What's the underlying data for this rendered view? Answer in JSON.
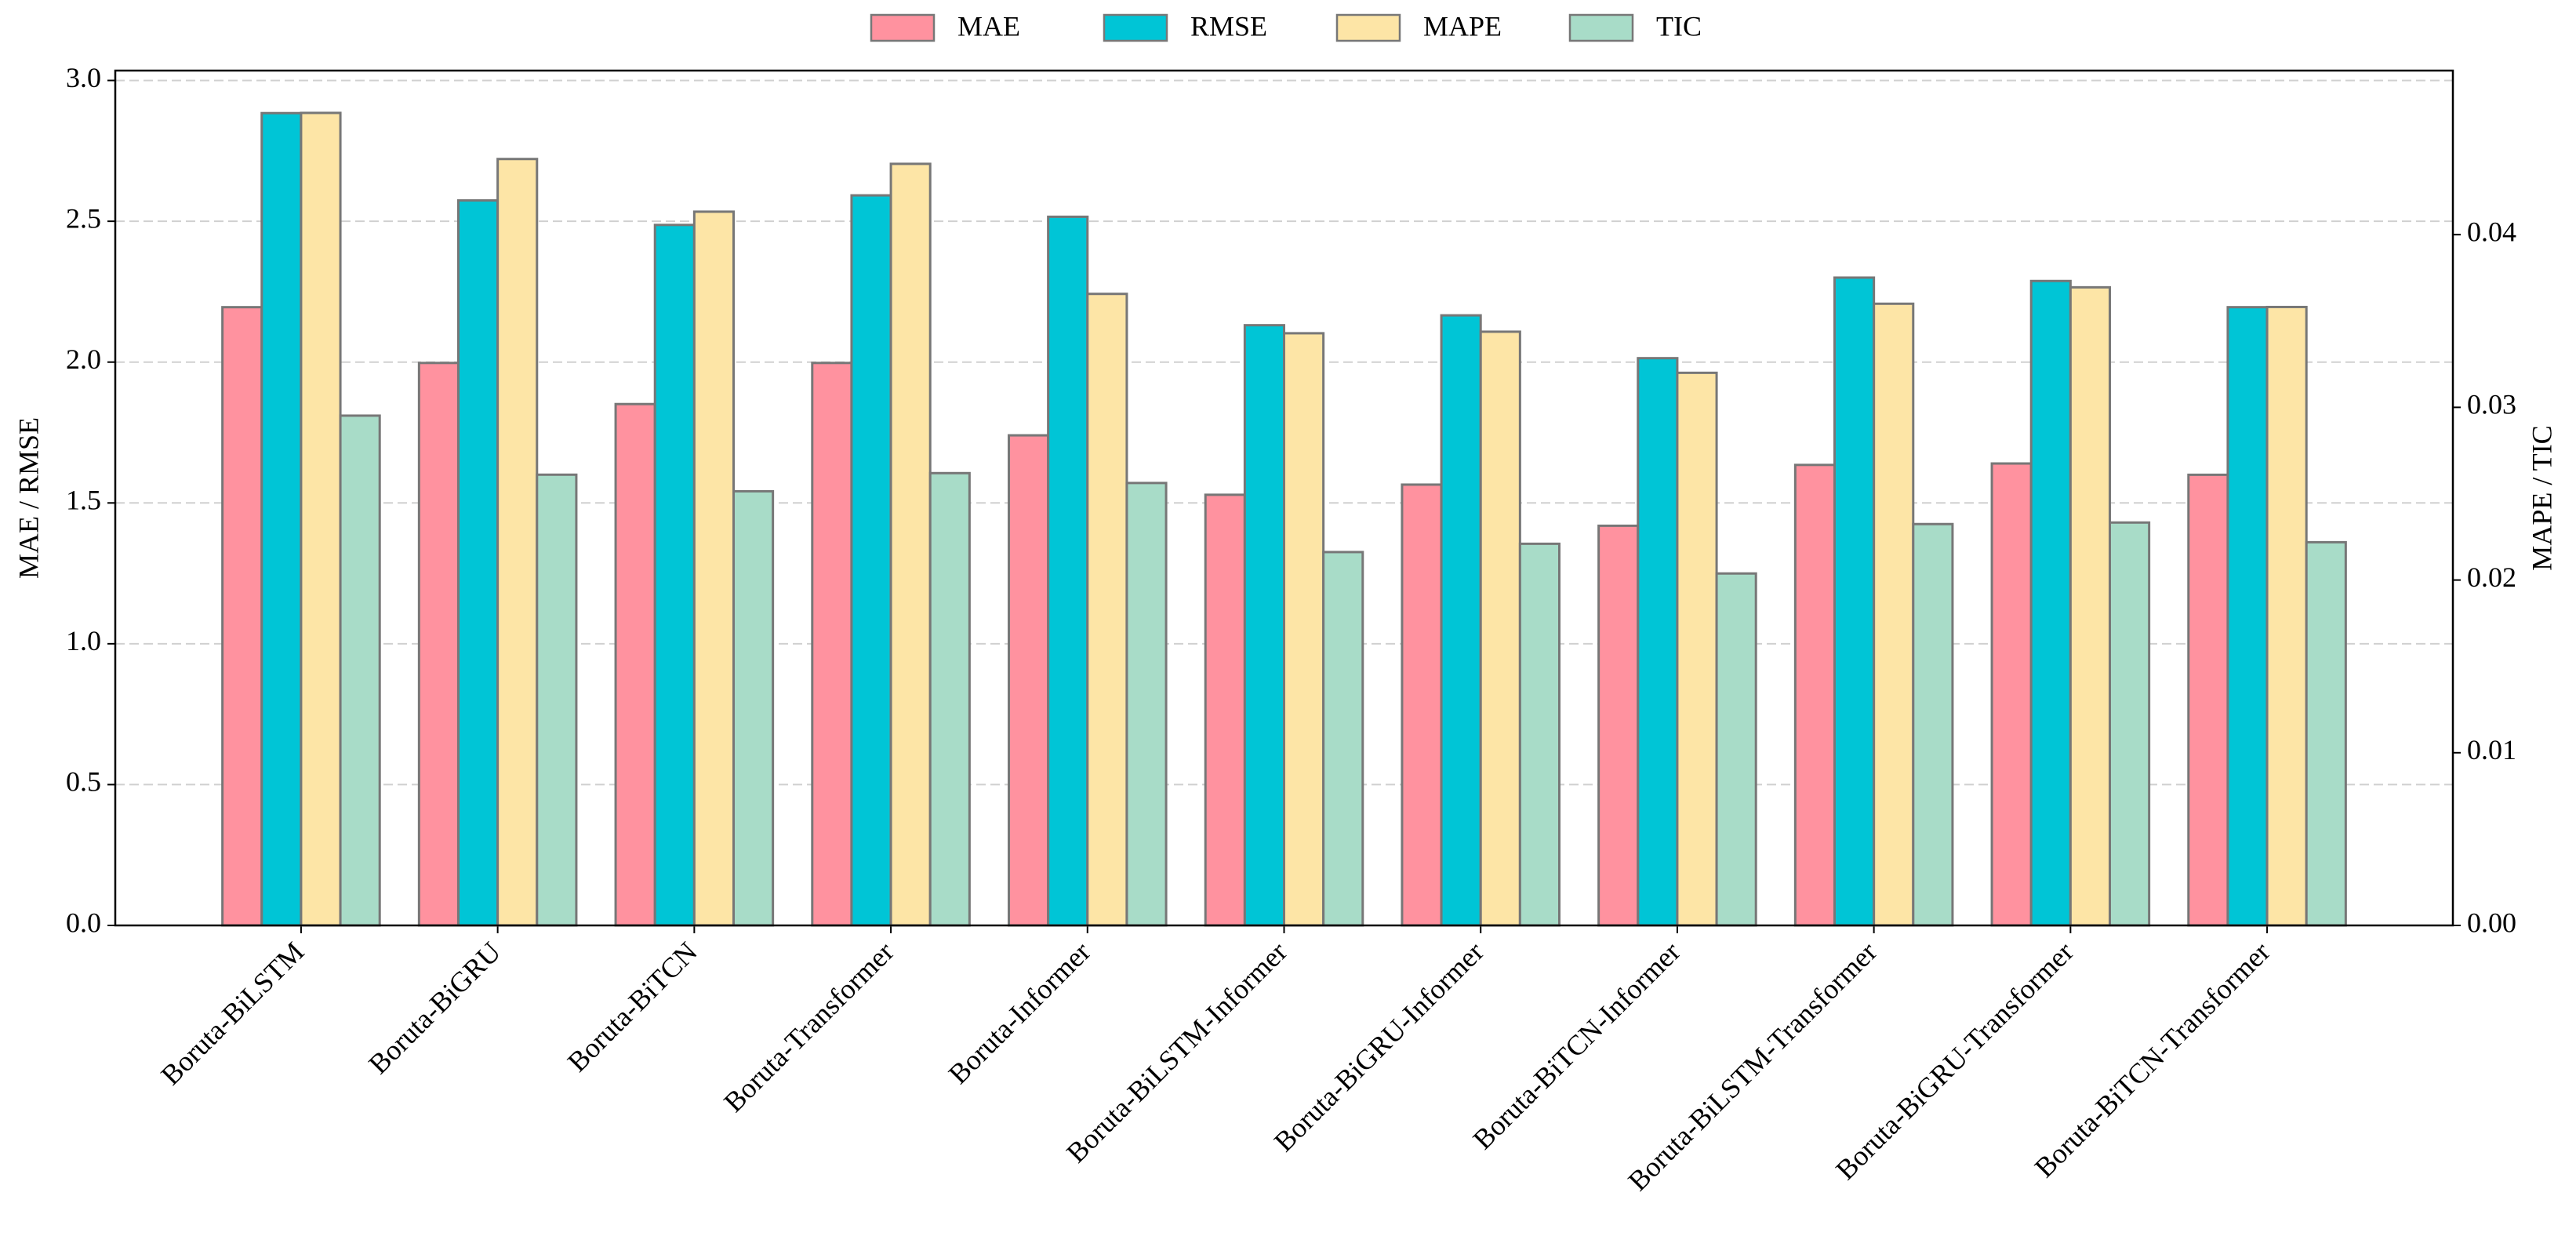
{
  "chart_data": {
    "type": "bar",
    "categories": [
      "Boruta-BiLSTM",
      "Boruta-BiGRU",
      "Boruta-BiTCN",
      "Boruta-Transformer",
      "Boruta-Informer",
      "Boruta-BiLSTM-Informer",
      "Boruta-BiGRU-Informer",
      "Boruta-BiTCN-Informer",
      "Boruta-BiLSTM-Transformer",
      "Boruta-BiGRU-Transformer",
      "Boruta-BiTCN-Transformer"
    ],
    "series": [
      {
        "name": "MAE",
        "color": "#ff929f",
        "values": [
          2.195,
          1.997,
          1.851,
          1.997,
          1.74,
          1.529,
          1.565,
          1.419,
          1.635,
          1.64,
          1.6
        ]
      },
      {
        "name": "RMSE",
        "color": "#00c5d6",
        "values": [
          2.884,
          2.574,
          2.487,
          2.592,
          2.516,
          2.131,
          2.166,
          2.014,
          2.3,
          2.288,
          2.195
        ]
      },
      {
        "name": "MAPE",
        "color": "#fde5a6",
        "axis": "y2",
        "values": [
          0.04705,
          0.04438,
          0.04133,
          0.0441,
          0.03657,
          0.03429,
          0.03438,
          0.032,
          0.036,
          0.03695,
          0.03581
        ]
      },
      {
        "name": "TIC",
        "color": "#a8dcc8",
        "axis": "y2",
        "values": [
          0.02952,
          0.0261,
          0.02514,
          0.02619,
          0.02562,
          0.02162,
          0.0221,
          0.02038,
          0.02324,
          0.02333,
          0.02219
        ]
      }
    ],
    "y_label": "MAE / RMSE",
    "y2_label": "MAPE / TIC",
    "ylim": [
      0,
      3.035
    ],
    "yticks": [
      {
        "value": 0,
        "label": "0.0"
      },
      {
        "value": 0.5,
        "label": "0.5"
      },
      {
        "value": 1,
        "label": "1.0"
      },
      {
        "value": 1.5,
        "label": "1.5"
      },
      {
        "value": 2,
        "label": "2.0"
      },
      {
        "value": 2.5,
        "label": "2.5"
      },
      {
        "value": 3,
        "label": "3.0"
      }
    ],
    "y2lim": [
      0,
      0.0495
    ],
    "y2ticks": [
      {
        "value": 0,
        "label": "0.00"
      },
      {
        "value": 0.01,
        "label": "0.01"
      },
      {
        "value": 0.02,
        "label": "0.02"
      },
      {
        "value": 0.03,
        "label": "0.03"
      },
      {
        "value": 0.04,
        "label": "0.04"
      }
    ],
    "grid": true,
    "legend": "top"
  }
}
